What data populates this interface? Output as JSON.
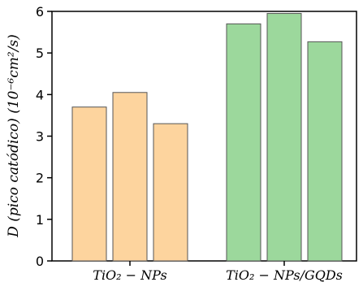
{
  "chart_data": {
    "type": "bar",
    "ylabel": "D (pico catódico) (10⁻⁶cm²/s)",
    "ylim": [
      0,
      6
    ],
    "yticks": [
      "0",
      "1",
      "2",
      "3",
      "4",
      "5",
      "6"
    ],
    "grid": false,
    "groups": [
      {
        "label": "TiO₂ − NPs",
        "color": "#FDD49E",
        "values": [
          3.7,
          4.05,
          3.3
        ]
      },
      {
        "label": "TiO₂ − NPs/GQDs",
        "color": "#9CD89C",
        "values": [
          5.7,
          5.95,
          5.27
        ]
      }
    ]
  }
}
